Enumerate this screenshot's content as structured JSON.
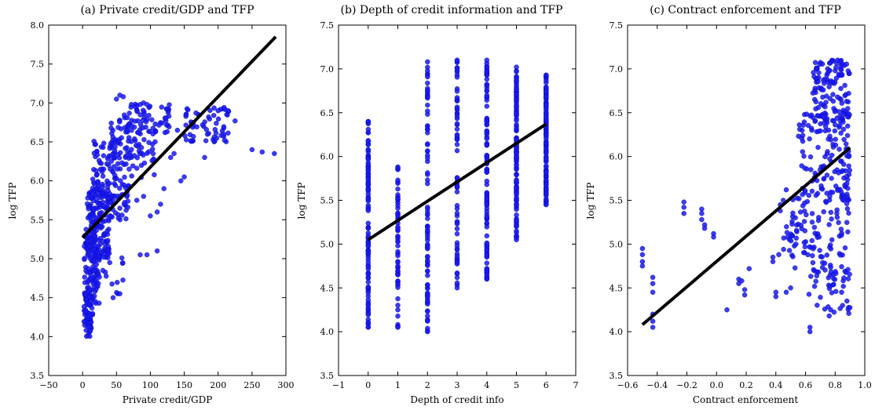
{
  "chart_data": [
    {
      "type": "scatter",
      "title": "(a) Private credit/GDP and TFP",
      "xlabel": "Private credit/GDP",
      "ylabel": "log TFP",
      "xlim": [
        -50,
        300
      ],
      "ylim": [
        3.5,
        8.0
      ],
      "xticks": [
        "−50",
        "0",
        "50",
        "100",
        "150",
        "200",
        "250",
        "300"
      ],
      "yticks": [
        "3.5",
        "4.0",
        "4.5",
        "5.0",
        "5.5",
        "6.0",
        "6.5",
        "7.0",
        "7.5",
        "8.0"
      ],
      "fit_line": {
        "x": [
          0,
          285
        ],
        "y": [
          5.27,
          7.85
        ]
      },
      "clusters": [
        {
          "x": [
            2,
            15
          ],
          "y": [
            4.0,
            4.6
          ],
          "n": 70
        },
        {
          "x": [
            2,
            25
          ],
          "y": [
            4.4,
            5.3
          ],
          "n": 110
        },
        {
          "x": [
            5,
            40
          ],
          "y": [
            5.0,
            6.0
          ],
          "n": 150
        },
        {
          "x": [
            15,
            70
          ],
          "y": [
            5.5,
            6.6
          ],
          "n": 130
        },
        {
          "x": [
            40,
            110
          ],
          "y": [
            6.0,
            6.8
          ],
          "n": 70
        },
        {
          "x": [
            60,
            130
          ],
          "y": [
            6.6,
            7.0
          ],
          "n": 60
        },
        {
          "x": [
            150,
            220
          ],
          "y": [
            6.5,
            6.95
          ],
          "n": 60
        },
        {
          "x": [
            30,
            60
          ],
          "y": [
            4.5,
            5.1
          ],
          "n": 12
        }
      ],
      "points": [
        {
          "x": 55,
          "y": 7.1
        },
        {
          "x": 60,
          "y": 7.08
        },
        {
          "x": 50,
          "y": 7.05
        },
        {
          "x": 72,
          "y": 6.98
        },
        {
          "x": 78,
          "y": 6.95
        },
        {
          "x": 85,
          "y": 6.98
        },
        {
          "x": 90,
          "y": 7.0
        },
        {
          "x": 95,
          "y": 6.98
        },
        {
          "x": 140,
          "y": 6.65
        },
        {
          "x": 135,
          "y": 6.35
        },
        {
          "x": 130,
          "y": 6.3
        },
        {
          "x": 180,
          "y": 6.3
        },
        {
          "x": 250,
          "y": 6.4
        },
        {
          "x": 265,
          "y": 6.37
        },
        {
          "x": 283,
          "y": 6.35
        },
        {
          "x": 225,
          "y": 6.77
        },
        {
          "x": 200,
          "y": 6.9
        },
        {
          "x": 215,
          "y": 6.9
        },
        {
          "x": 110,
          "y": 5.1
        },
        {
          "x": 95,
          "y": 5.05
        },
        {
          "x": 85,
          "y": 5.05
        },
        {
          "x": 100,
          "y": 5.55
        },
        {
          "x": 110,
          "y": 5.6
        },
        {
          "x": 115,
          "y": 5.7
        },
        {
          "x": 150,
          "y": 6.05
        },
        {
          "x": 145,
          "y": 6.0
        },
        {
          "x": 120,
          "y": 5.9
        },
        {
          "x": 90,
          "y": 5.8
        },
        {
          "x": 80,
          "y": 5.75
        },
        {
          "x": 55,
          "y": 4.55
        },
        {
          "x": 45,
          "y": 4.5
        },
        {
          "x": 40,
          "y": 4.95
        },
        {
          "x": 30,
          "y": 4.85
        }
      ]
    },
    {
      "type": "scatter",
      "title": "(b) Depth of credit information and TFP",
      "xlabel": "Depth of credit info",
      "ylabel": "log TFP",
      "xlim": [
        -1,
        7
      ],
      "ylim": [
        3.5,
        7.5
      ],
      "xticks": [
        "−1",
        "0",
        "1",
        "2",
        "3",
        "4",
        "5",
        "6",
        "7"
      ],
      "yticks": [
        "3.5",
        "4.0",
        "4.5",
        "5.0",
        "5.5",
        "6.0",
        "6.5",
        "7.0",
        "7.5"
      ],
      "fit_line": {
        "x": [
          0,
          6
        ],
        "y": [
          5.05,
          6.37
        ]
      },
      "columns": [
        {
          "x": 0,
          "ymin": 4.05,
          "ymax": 6.4,
          "n": 110
        },
        {
          "x": 1,
          "ymin": 4.05,
          "ymax": 5.88,
          "n": 60
        },
        {
          "x": 2,
          "ymin": 4.0,
          "ymax": 7.08,
          "n": 90
        },
        {
          "x": 3,
          "ymin": 4.5,
          "ymax": 7.1,
          "n": 70
        },
        {
          "x": 4,
          "ymin": 4.6,
          "ymax": 7.1,
          "n": 110
        },
        {
          "x": 5,
          "ymin": 5.05,
          "ymax": 7.02,
          "n": 140
        },
        {
          "x": 6,
          "ymin": 5.45,
          "ymax": 6.93,
          "n": 130
        }
      ]
    },
    {
      "type": "scatter",
      "title": "(c) Contract enforcement and TFP",
      "xlabel": "Contract enforcement",
      "ylabel": "log TFP",
      "xlim": [
        -0.6,
        1.0
      ],
      "ylim": [
        3.5,
        7.5
      ],
      "xticks": [
        "−0.6",
        "−0.4",
        "−0.2",
        "0.0",
        "0.2",
        "0.4",
        "0.6",
        "0.8",
        "1.0"
      ],
      "yticks": [
        "3.5",
        "4.0",
        "4.5",
        "5.0",
        "5.5",
        "6.0",
        "6.5",
        "7.0",
        "7.5"
      ],
      "fit_line": {
        "x": [
          -0.5,
          0.9
        ],
        "y": [
          4.08,
          6.1
        ]
      },
      "clusters": [
        {
          "x": [
            0.65,
            0.9
          ],
          "y": [
            6.4,
            7.1
          ],
          "n": 120
        },
        {
          "x": [
            0.55,
            0.9
          ],
          "y": [
            5.5,
            6.5
          ],
          "n": 130
        },
        {
          "x": [
            0.5,
            0.9
          ],
          "y": [
            4.6,
            5.6
          ],
          "n": 100
        },
        {
          "x": [
            0.6,
            0.9
          ],
          "y": [
            4.2,
            4.7
          ],
          "n": 35
        },
        {
          "x": [
            0.45,
            0.6
          ],
          "y": [
            4.9,
            5.3
          ],
          "n": 20
        }
      ],
      "points": [
        {
          "x": -0.5,
          "y": 4.95
        },
        {
          "x": -0.5,
          "y": 4.88
        },
        {
          "x": -0.5,
          "y": 4.8
        },
        {
          "x": -0.5,
          "y": 4.75
        },
        {
          "x": -0.43,
          "y": 4.62
        },
        {
          "x": -0.43,
          "y": 4.55
        },
        {
          "x": -0.43,
          "y": 4.45
        },
        {
          "x": -0.43,
          "y": 4.2
        },
        {
          "x": -0.43,
          "y": 4.12
        },
        {
          "x": -0.43,
          "y": 4.05
        },
        {
          "x": -0.22,
          "y": 5.48
        },
        {
          "x": -0.22,
          "y": 5.42
        },
        {
          "x": -0.22,
          "y": 5.35
        },
        {
          "x": -0.1,
          "y": 5.4
        },
        {
          "x": -0.1,
          "y": 5.35
        },
        {
          "x": -0.1,
          "y": 5.28
        },
        {
          "x": -0.08,
          "y": 5.22
        },
        {
          "x": -0.08,
          "y": 5.18
        },
        {
          "x": -0.02,
          "y": 5.12
        },
        {
          "x": -0.02,
          "y": 5.08
        },
        {
          "x": 0.07,
          "y": 4.25
        },
        {
          "x": 0.15,
          "y": 4.6
        },
        {
          "x": 0.15,
          "y": 4.55
        },
        {
          "x": 0.17,
          "y": 4.58
        },
        {
          "x": 0.19,
          "y": 4.48
        },
        {
          "x": 0.19,
          "y": 4.42
        },
        {
          "x": 0.22,
          "y": 4.72
        },
        {
          "x": 0.38,
          "y": 4.85
        },
        {
          "x": 0.38,
          "y": 4.8
        },
        {
          "x": 0.4,
          "y": 4.45
        },
        {
          "x": 0.4,
          "y": 4.4
        },
        {
          "x": 0.43,
          "y": 5.45
        },
        {
          "x": 0.43,
          "y": 5.38
        },
        {
          "x": 0.47,
          "y": 4.45
        },
        {
          "x": 0.5,
          "y": 4.5
        },
        {
          "x": 0.42,
          "y": 4.88
        },
        {
          "x": 0.45,
          "y": 5.5
        },
        {
          "x": 0.47,
          "y": 5.62
        },
        {
          "x": 0.63,
          "y": 4.05
        },
        {
          "x": 0.63,
          "y": 4.0
        },
        {
          "x": 0.76,
          "y": 4.18
        },
        {
          "x": 0.77,
          "y": 4.25
        },
        {
          "x": 0.85,
          "y": 4.3
        },
        {
          "x": 0.88,
          "y": 4.35
        }
      ]
    }
  ]
}
